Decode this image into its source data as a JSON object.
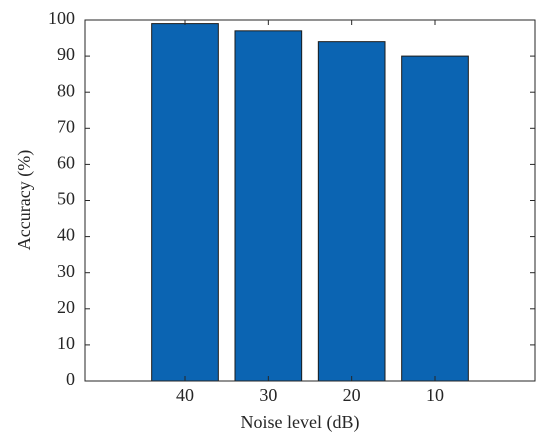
{
  "chart_data": {
    "type": "bar",
    "categories": [
      "40",
      "30",
      "20",
      "10"
    ],
    "values": [
      99,
      97,
      94,
      90
    ],
    "color": "#0b64b2",
    "xlabel": "Noise level (dB)",
    "ylabel": "Accuracy (%)",
    "ylim": [
      0,
      100
    ],
    "yticks": [
      0,
      10,
      20,
      30,
      40,
      50,
      60,
      70,
      80,
      90,
      100
    ],
    "grid": false
  }
}
